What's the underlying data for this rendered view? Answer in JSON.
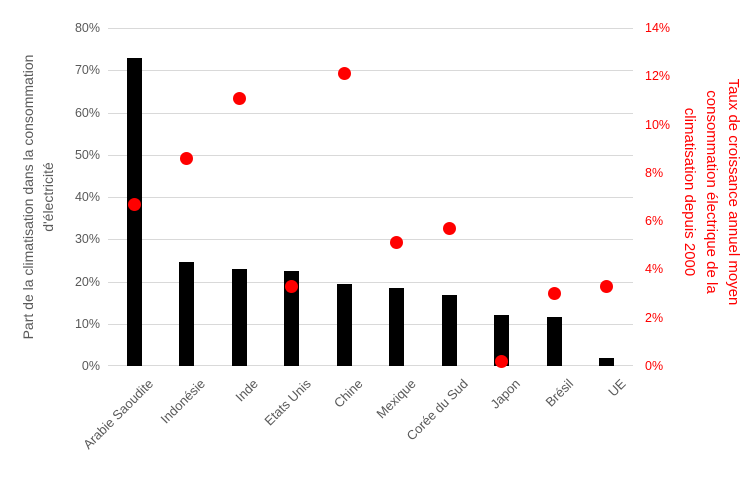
{
  "chart_data": {
    "type": "bar",
    "title": "",
    "xlabel": "",
    "categories": [
      "Arabie Saoudite",
      "Indonésie",
      "Inde",
      "Etats Unis",
      "Chine",
      "Mexique",
      "Corée du Sud",
      "Japon",
      "Brésil",
      "UE"
    ],
    "series": [
      {
        "name": "Part de la climatisation dans la consommation d'électricité",
        "type": "bar",
        "axis": "left",
        "color": "#000000",
        "values": [
          73,
          24.5,
          23,
          22.5,
          19.3,
          18.4,
          16.8,
          12,
          11.7,
          2
        ]
      },
      {
        "name": "Taux de croissance annuel moyen consommation électrique de la climatisation depuis 2000",
        "type": "scatter",
        "axis": "right",
        "color": "#ff0000",
        "values": [
          6.7,
          8.6,
          11.1,
          3.3,
          12.1,
          5.1,
          5.7,
          0.2,
          3.0,
          3.3
        ]
      }
    ],
    "left_axis": {
      "title": "Part de la climatisation dans la consommation d'électricité",
      "title_lines": [
        "Part de la climatisation dans la consommation",
        "d'électricité"
      ],
      "min": 0,
      "max": 80,
      "tick_step": 10,
      "tick_labels": [
        "0%",
        "10%",
        "20%",
        "30%",
        "40%",
        "50%",
        "60%",
        "70%",
        "80%"
      ],
      "text_color": "#595959"
    },
    "right_axis": {
      "title": "Taux de croissance annuel moyen consommation électrique de la climatisation depuis 2000",
      "title_lines": [
        "Taux de croissance annuel moyen",
        "consommation électrique de la",
        "climatisation depuis 2000"
      ],
      "min": 0,
      "max": 14,
      "tick_step": 2,
      "tick_labels": [
        "0%",
        "2%",
        "4%",
        "6%",
        "8%",
        "10%",
        "12%",
        "14%"
      ],
      "text_color": "#ff0000"
    },
    "grid": true,
    "legend": false,
    "colors": {
      "bar": "#000000",
      "marker": "#ff0000",
      "gridline": "#d9d9d9",
      "background": "#ffffff",
      "gray_text": "#595959",
      "red_text": "#ff0000"
    }
  }
}
